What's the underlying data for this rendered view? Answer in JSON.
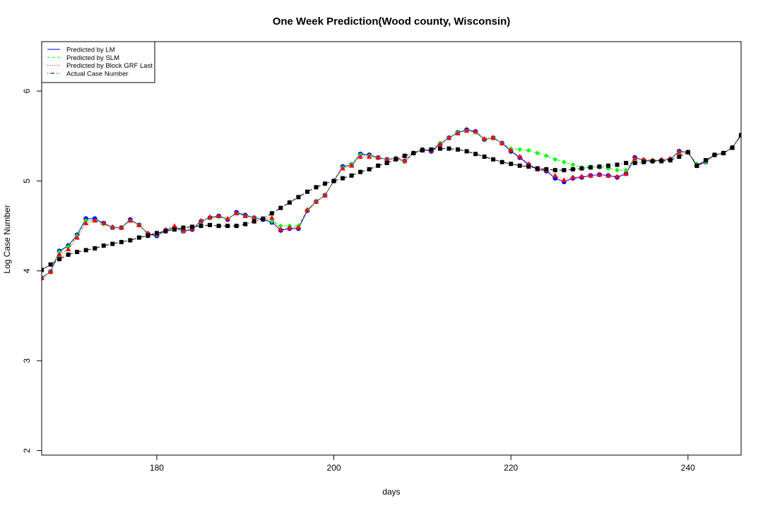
{
  "chart_data": {
    "type": "line",
    "title": "One Week Prediction(Wood county, Wisconsin)",
    "xlabel": "days",
    "ylabel": "Log Case Number",
    "xlim": [
      167,
      246
    ],
    "ylim": [
      1.95,
      6.55
    ],
    "xticks": [
      180,
      200,
      220,
      240
    ],
    "yticks": [
      2,
      3,
      4,
      5,
      6
    ],
    "grid": false,
    "legend_position": "top-left",
    "x": [
      167,
      168,
      169,
      170,
      171,
      172,
      173,
      174,
      175,
      176,
      177,
      178,
      179,
      180,
      181,
      182,
      183,
      184,
      185,
      186,
      187,
      188,
      189,
      190,
      191,
      192,
      193,
      194,
      195,
      196,
      197,
      198,
      199,
      200,
      201,
      202,
      203,
      204,
      205,
      206,
      207,
      208,
      209,
      210,
      211,
      212,
      213,
      214,
      215,
      216,
      217,
      218,
      219,
      220,
      221,
      222,
      223,
      224,
      225,
      226,
      227,
      228,
      229,
      230,
      231,
      232,
      233,
      234,
      235,
      236,
      237,
      238,
      239,
      240,
      241,
      242,
      243,
      244,
      245,
      246
    ],
    "series": [
      {
        "name": "Predicted by LM",
        "color": "#0000ff",
        "line_style": "solid",
        "marker": "circle",
        "values": [
          3.92,
          3.99,
          4.22,
          4.28,
          4.4,
          4.58,
          4.58,
          4.53,
          4.48,
          4.48,
          4.57,
          4.51,
          4.41,
          4.39,
          4.45,
          4.48,
          4.44,
          4.46,
          4.55,
          4.59,
          4.61,
          4.57,
          4.65,
          4.62,
          4.59,
          4.57,
          4.54,
          4.45,
          4.47,
          4.47,
          4.67,
          4.77,
          4.84,
          5.0,
          5.16,
          5.18,
          5.3,
          5.29,
          5.26,
          5.24,
          5.25,
          5.22,
          5.31,
          5.35,
          5.33,
          5.41,
          5.48,
          5.54,
          5.57,
          5.55,
          5.46,
          5.48,
          5.42,
          5.33,
          5.26,
          5.18,
          5.13,
          5.11,
          5.03,
          4.99,
          5.03,
          5.04,
          5.06,
          5.07,
          5.06,
          5.04,
          5.08,
          5.26,
          5.23,
          5.22,
          5.23,
          5.24,
          5.33,
          5.32,
          5.17,
          5.21,
          5.29,
          5.31,
          5.37,
          5.51
        ]
      },
      {
        "name": "Predicted by SLM",
        "color": "#00ff00",
        "line_style": "dashed",
        "marker": "diamond",
        "values": [
          3.92,
          3.99,
          4.21,
          4.27,
          4.39,
          4.56,
          4.56,
          4.52,
          4.48,
          4.48,
          4.56,
          4.51,
          4.41,
          4.4,
          4.45,
          4.49,
          4.44,
          4.47,
          4.55,
          4.59,
          4.6,
          4.58,
          4.64,
          4.61,
          4.59,
          4.58,
          4.55,
          4.5,
          4.5,
          4.5,
          4.68,
          4.77,
          4.84,
          5.0,
          5.15,
          5.18,
          5.29,
          5.28,
          5.26,
          5.24,
          5.25,
          5.22,
          5.31,
          5.35,
          5.34,
          5.42,
          5.48,
          5.54,
          5.56,
          5.54,
          5.46,
          5.48,
          5.42,
          5.36,
          5.35,
          5.34,
          5.31,
          5.28,
          5.24,
          5.21,
          5.18,
          5.15,
          5.16,
          5.15,
          5.14,
          5.12,
          5.12,
          5.25,
          5.23,
          5.23,
          5.23,
          5.24,
          5.32,
          5.32,
          5.19,
          5.21,
          5.29,
          5.31,
          5.37,
          5.51
        ]
      },
      {
        "name": "Predicted by Block GRF Last",
        "color": "#ff0000",
        "line_style": "dotted",
        "marker": "triangle",
        "values": [
          3.92,
          3.99,
          4.18,
          4.24,
          4.37,
          4.53,
          4.56,
          4.53,
          4.49,
          4.48,
          4.56,
          4.51,
          4.42,
          4.41,
          4.46,
          4.5,
          4.45,
          4.47,
          4.56,
          4.6,
          4.61,
          4.58,
          4.64,
          4.61,
          4.59,
          4.58,
          4.59,
          4.46,
          4.48,
          4.48,
          4.68,
          4.77,
          4.84,
          5.0,
          5.14,
          5.17,
          5.27,
          5.27,
          5.26,
          5.24,
          5.25,
          5.23,
          5.31,
          5.35,
          5.34,
          5.41,
          5.48,
          5.53,
          5.56,
          5.55,
          5.47,
          5.48,
          5.42,
          5.34,
          5.27,
          5.19,
          5.13,
          5.12,
          5.06,
          5.01,
          5.04,
          5.05,
          5.06,
          5.07,
          5.06,
          5.05,
          5.08,
          5.25,
          5.24,
          5.23,
          5.24,
          5.25,
          5.32,
          5.32,
          5.17,
          5.23,
          5.29,
          5.31,
          5.37,
          5.51
        ]
      },
      {
        "name": "Actual Case Number",
        "color": "#000000",
        "line_style": "dotdash",
        "marker": "square",
        "values": [
          4.01,
          4.07,
          4.13,
          4.18,
          4.21,
          4.23,
          4.25,
          4.28,
          4.3,
          4.32,
          4.34,
          4.37,
          4.39,
          4.42,
          4.44,
          4.46,
          4.48,
          4.49,
          4.5,
          4.51,
          4.5,
          4.5,
          4.5,
          4.52,
          4.55,
          4.58,
          4.64,
          4.7,
          4.76,
          4.82,
          4.88,
          4.93,
          4.97,
          5.0,
          5.03,
          5.06,
          5.1,
          5.13,
          5.17,
          5.2,
          5.24,
          5.28,
          5.31,
          5.34,
          5.35,
          5.36,
          5.36,
          5.35,
          5.33,
          5.3,
          5.27,
          5.24,
          5.21,
          5.19,
          5.17,
          5.16,
          5.14,
          5.13,
          5.12,
          5.12,
          5.13,
          5.14,
          5.15,
          5.16,
          5.17,
          5.18,
          5.2,
          5.2,
          5.21,
          5.22,
          5.22,
          5.23,
          5.27,
          5.32,
          5.17,
          5.23,
          5.29,
          5.31,
          5.37,
          5.51
        ]
      }
    ]
  }
}
